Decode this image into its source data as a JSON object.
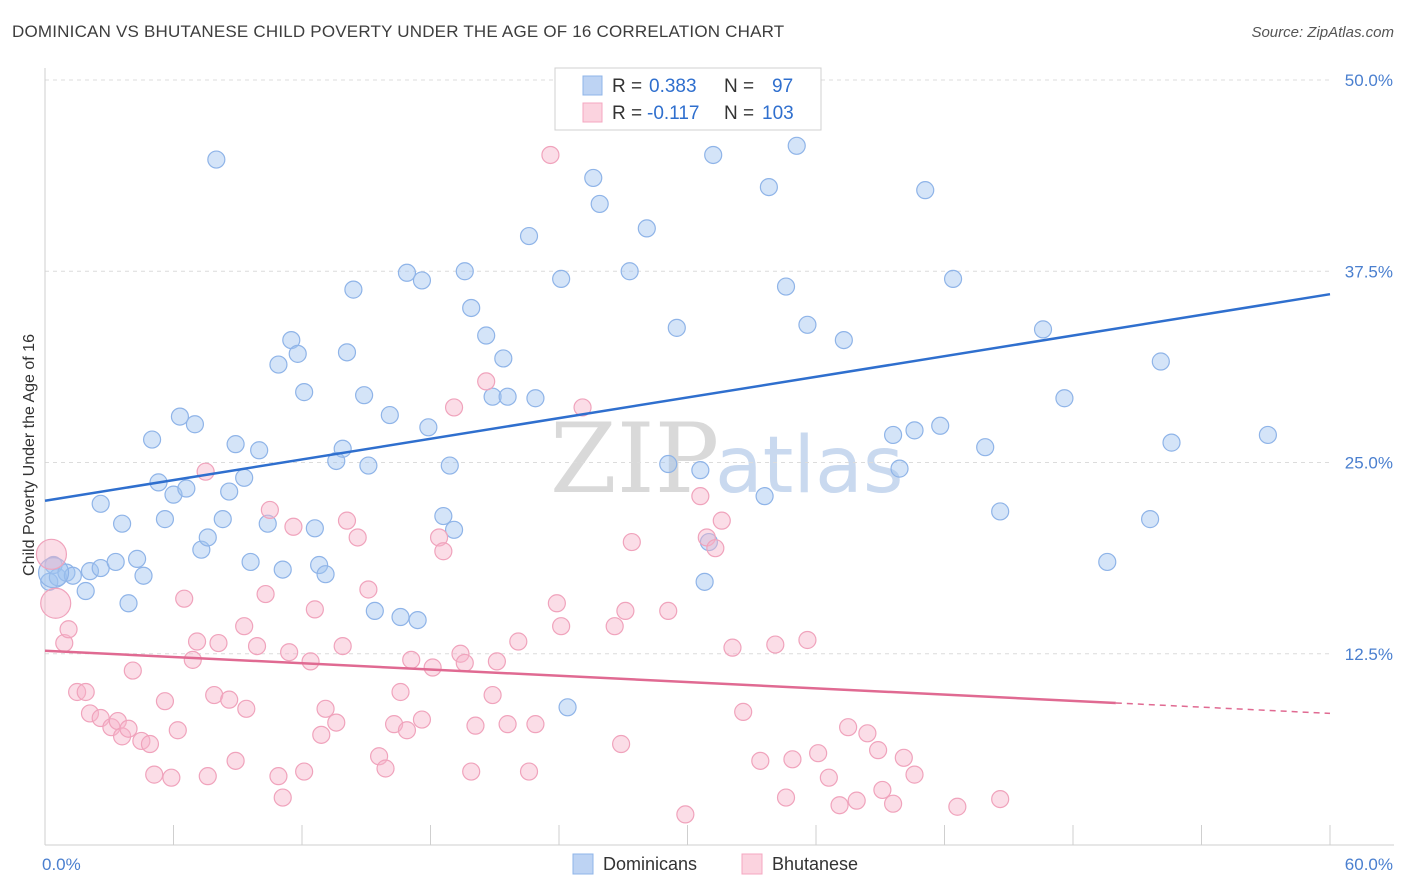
{
  "title": "DOMINICAN VS BHUTANESE CHILD POVERTY UNDER THE AGE OF 16 CORRELATION CHART",
  "source": "Source: ZipAtlas.com",
  "watermark": {
    "zip": "ZIP",
    "atlas": "atlas"
  },
  "chart_data": {
    "type": "scatter",
    "xlabel": "",
    "ylabel": "Child Poverty Under the Age of 16",
    "xlim": [
      0,
      60
    ],
    "ylim": [
      0,
      50
    ],
    "x_tick_labels": [
      {
        "value": 0,
        "label": "0.0%"
      },
      {
        "value": 60,
        "label": "60.0%"
      }
    ],
    "y_tick_labels": [
      {
        "value": 12.5,
        "label": "12.5%"
      },
      {
        "value": 25,
        "label": "25.0%"
      },
      {
        "value": 37.5,
        "label": "37.5%"
      },
      {
        "value": 50,
        "label": "50.0%"
      }
    ],
    "grid": true,
    "legend_position": "top-center",
    "legend": {
      "rows": [
        {
          "r_label": "R =",
          "r_value": "0.383",
          "n_label": "N =",
          "n_value": "97"
        },
        {
          "r_label": "R =",
          "r_value": "-0.117",
          "n_label": "N =",
          "n_value": "103"
        }
      ]
    },
    "series": [
      {
        "name": "Dominicans",
        "color": "#8fb4e8",
        "line_color": "#2f6fce",
        "trend": {
          "x": [
            0,
            60
          ],
          "y": [
            22.5,
            36.0
          ],
          "dash_from": null
        },
        "points": [
          [
            0.2,
            17.2
          ],
          [
            0.4,
            18.3
          ],
          [
            0.6,
            17.5
          ],
          [
            1.0,
            17.8
          ],
          [
            1.3,
            17.6
          ],
          [
            1.9,
            16.6
          ],
          [
            2.1,
            17.9
          ],
          [
            2.6,
            18.1
          ],
          [
            3.3,
            18.5
          ],
          [
            2.6,
            22.3
          ],
          [
            3.6,
            21.0
          ],
          [
            3.9,
            15.8
          ],
          [
            4.3,
            18.7
          ],
          [
            4.6,
            17.6
          ],
          [
            5.0,
            26.5
          ],
          [
            5.3,
            23.7
          ],
          [
            5.6,
            21.3
          ],
          [
            6.0,
            22.9
          ],
          [
            6.3,
            28.0
          ],
          [
            6.6,
            23.3
          ],
          [
            7.0,
            27.5
          ],
          [
            7.3,
            19.3
          ],
          [
            7.6,
            20.1
          ],
          [
            8.0,
            44.8
          ],
          [
            8.3,
            21.3
          ],
          [
            8.6,
            23.1
          ],
          [
            8.9,
            26.2
          ],
          [
            9.3,
            24.0
          ],
          [
            9.6,
            18.5
          ],
          [
            10.0,
            25.8
          ],
          [
            10.4,
            21.0
          ],
          [
            10.9,
            31.4
          ],
          [
            11.1,
            18.0
          ],
          [
            11.5,
            33.0
          ],
          [
            11.8,
            32.1
          ],
          [
            12.1,
            29.6
          ],
          [
            12.6,
            20.7
          ],
          [
            12.8,
            18.3
          ],
          [
            13.1,
            17.7
          ],
          [
            13.6,
            25.1
          ],
          [
            13.9,
            25.9
          ],
          [
            14.1,
            32.2
          ],
          [
            14.4,
            36.3
          ],
          [
            14.9,
            29.4
          ],
          [
            15.1,
            24.8
          ],
          [
            15.4,
            15.3
          ],
          [
            16.1,
            28.1
          ],
          [
            16.6,
            14.9
          ],
          [
            16.9,
            37.4
          ],
          [
            17.4,
            14.7
          ],
          [
            17.6,
            36.9
          ],
          [
            17.9,
            27.3
          ],
          [
            18.6,
            21.5
          ],
          [
            18.9,
            24.8
          ],
          [
            19.1,
            20.6
          ],
          [
            19.6,
            37.5
          ],
          [
            19.9,
            35.1
          ],
          [
            20.6,
            33.3
          ],
          [
            20.9,
            29.3
          ],
          [
            21.4,
            31.8
          ],
          [
            21.6,
            29.3
          ],
          [
            22.6,
            39.8
          ],
          [
            22.9,
            29.2
          ],
          [
            24.1,
            37.0
          ],
          [
            24.4,
            9.0
          ],
          [
            25.6,
            43.6
          ],
          [
            25.9,
            41.9
          ],
          [
            27.3,
            37.5
          ],
          [
            28.1,
            40.3
          ],
          [
            29.1,
            24.9
          ],
          [
            29.5,
            33.8
          ],
          [
            30.6,
            24.5
          ],
          [
            30.8,
            17.2
          ],
          [
            31.0,
            19.8
          ],
          [
            31.2,
            45.1
          ],
          [
            33.6,
            22.8
          ],
          [
            33.8,
            43.0
          ],
          [
            34.6,
            36.5
          ],
          [
            35.1,
            45.7
          ],
          [
            35.6,
            34.0
          ],
          [
            37.3,
            33.0
          ],
          [
            39.6,
            26.8
          ],
          [
            39.9,
            24.6
          ],
          [
            40.6,
            27.1
          ],
          [
            41.1,
            42.8
          ],
          [
            41.8,
            27.4
          ],
          [
            42.4,
            37.0
          ],
          [
            43.9,
            26.0
          ],
          [
            44.6,
            21.8
          ],
          [
            46.6,
            33.7
          ],
          [
            47.6,
            29.2
          ],
          [
            49.6,
            18.5
          ],
          [
            51.6,
            21.3
          ],
          [
            52.1,
            31.6
          ],
          [
            52.6,
            26.3
          ],
          [
            57.1,
            26.8
          ],
          [
            0.4,
            17.8
          ]
        ]
      },
      {
        "name": "Bhutanese",
        "color": "#f4a7c0",
        "line_color": "#e06a92",
        "trend": {
          "x": [
            0,
            60
          ],
          "y": [
            12.7,
            8.6
          ],
          "dash_from": 50
        },
        "points": [
          [
            0.3,
            19.0
          ],
          [
            0.5,
            15.8
          ],
          [
            0.9,
            13.2
          ],
          [
            1.1,
            14.1
          ],
          [
            1.5,
            10.0
          ],
          [
            1.9,
            10.0
          ],
          [
            2.1,
            8.6
          ],
          [
            2.6,
            8.3
          ],
          [
            3.1,
            7.7
          ],
          [
            3.4,
            8.1
          ],
          [
            3.6,
            7.1
          ],
          [
            3.9,
            7.6
          ],
          [
            4.1,
            11.4
          ],
          [
            4.5,
            6.8
          ],
          [
            4.9,
            6.6
          ],
          [
            5.1,
            4.6
          ],
          [
            5.6,
            9.4
          ],
          [
            5.9,
            4.4
          ],
          [
            6.2,
            7.5
          ],
          [
            6.5,
            16.1
          ],
          [
            6.9,
            12.1
          ],
          [
            7.1,
            13.3
          ],
          [
            7.5,
            24.4
          ],
          [
            7.6,
            4.5
          ],
          [
            7.9,
            9.8
          ],
          [
            8.1,
            13.2
          ],
          [
            8.6,
            9.5
          ],
          [
            8.9,
            5.5
          ],
          [
            9.3,
            14.3
          ],
          [
            9.4,
            8.9
          ],
          [
            9.9,
            13.0
          ],
          [
            10.3,
            16.4
          ],
          [
            10.5,
            21.9
          ],
          [
            10.9,
            4.5
          ],
          [
            11.1,
            3.1
          ],
          [
            11.4,
            12.6
          ],
          [
            11.6,
            20.8
          ],
          [
            12.1,
            4.8
          ],
          [
            12.4,
            12.0
          ],
          [
            12.6,
            15.4
          ],
          [
            12.9,
            7.2
          ],
          [
            13.1,
            8.9
          ],
          [
            13.6,
            8.0
          ],
          [
            13.9,
            13.0
          ],
          [
            14.1,
            21.2
          ],
          [
            14.6,
            20.1
          ],
          [
            15.1,
            16.7
          ],
          [
            15.6,
            5.8
          ],
          [
            15.9,
            5.0
          ],
          [
            16.3,
            7.9
          ],
          [
            16.6,
            10.0
          ],
          [
            16.9,
            7.5
          ],
          [
            17.1,
            12.1
          ],
          [
            17.6,
            8.2
          ],
          [
            18.1,
            11.6
          ],
          [
            18.4,
            20.1
          ],
          [
            18.6,
            19.2
          ],
          [
            19.1,
            28.6
          ],
          [
            19.4,
            12.5
          ],
          [
            19.6,
            11.9
          ],
          [
            19.9,
            4.8
          ],
          [
            20.1,
            7.8
          ],
          [
            20.6,
            30.3
          ],
          [
            20.9,
            9.8
          ],
          [
            21.1,
            12.0
          ],
          [
            21.6,
            7.9
          ],
          [
            22.1,
            13.3
          ],
          [
            22.6,
            4.8
          ],
          [
            22.9,
            7.9
          ],
          [
            23.6,
            45.1
          ],
          [
            23.9,
            15.8
          ],
          [
            24.1,
            14.3
          ],
          [
            25.1,
            28.6
          ],
          [
            26.6,
            14.3
          ],
          [
            26.9,
            6.6
          ],
          [
            27.1,
            15.3
          ],
          [
            27.4,
            19.8
          ],
          [
            29.1,
            15.3
          ],
          [
            29.9,
            2.0
          ],
          [
            30.6,
            22.8
          ],
          [
            30.9,
            20.1
          ],
          [
            31.3,
            19.4
          ],
          [
            31.6,
            21.2
          ],
          [
            32.1,
            12.9
          ],
          [
            32.6,
            8.7
          ],
          [
            33.4,
            5.5
          ],
          [
            34.1,
            13.1
          ],
          [
            34.6,
            3.1
          ],
          [
            34.9,
            5.6
          ],
          [
            35.6,
            13.4
          ],
          [
            36.1,
            6.0
          ],
          [
            36.6,
            4.4
          ],
          [
            37.1,
            2.6
          ],
          [
            37.5,
            7.7
          ],
          [
            37.9,
            2.9
          ],
          [
            38.4,
            7.3
          ],
          [
            38.9,
            6.2
          ],
          [
            39.1,
            3.6
          ],
          [
            39.6,
            2.7
          ],
          [
            40.1,
            5.7
          ],
          [
            40.6,
            4.6
          ],
          [
            42.6,
            2.5
          ],
          [
            44.6,
            3.0
          ]
        ]
      }
    ]
  }
}
